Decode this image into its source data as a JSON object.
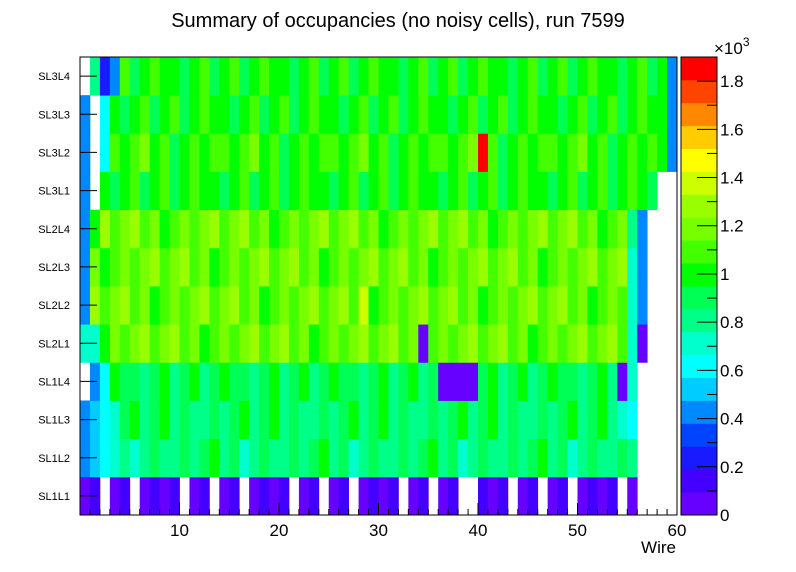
{
  "chart_data": {
    "type": "heatmap",
    "title": "Summary of occupancies (no noisy cells), run 7599",
    "xlabel": "Wire",
    "ylabel": "",
    "xlim": [
      0,
      60
    ],
    "x_ticks": [
      10,
      20,
      30,
      40,
      50,
      60
    ],
    "y_categories": [
      "SL1L1",
      "SL1L2",
      "SL1L3",
      "SL1L4",
      "SL2L1",
      "SL2L2",
      "SL2L3",
      "SL2L4",
      "SL3L1",
      "SL3L2",
      "SL3L3",
      "SL3L4"
    ],
    "z_range": [
      0,
      1900
    ],
    "z_scale_label": "×10",
    "z_scale_exponent": "3",
    "z_ticks": [
      "0",
      "0.2",
      "0.4",
      "0.6",
      "0.8",
      "1",
      "1.2",
      "1.4",
      "1.6",
      "1.8"
    ],
    "palette": [
      "#6600ff",
      "#4400ff",
      "#1a1aff",
      "#0044ff",
      "#0088ff",
      "#00ccff",
      "#00ffff",
      "#00ffcc",
      "#00ff88",
      "#00ff55",
      "#00ff00",
      "#44ff00",
      "#77ff00",
      "#99ff00",
      "#ccff00",
      "#ffff00",
      "#ffcc00",
      "#ff8800",
      "#ff4400",
      "#ff0000"
    ],
    "rows": [
      {
        "layer": "SL1L1",
        "base": 60,
        "start": 1,
        "end": 56,
        "overrides": [
          [
            40,
            0
          ]
        ]
      },
      {
        "layer": "SL1L2",
        "base": 850,
        "start": 1,
        "end": 56,
        "overrides": [
          [
            1,
            400
          ],
          [
            2,
            500
          ],
          [
            3,
            650
          ],
          [
            4,
            700
          ],
          [
            5,
            800
          ]
        ]
      },
      {
        "layer": "SL1L3",
        "base": 870,
        "start": 1,
        "end": 56,
        "overrides": [
          [
            1,
            400
          ],
          [
            2,
            500
          ],
          [
            3,
            650
          ],
          [
            4,
            700
          ],
          [
            55,
            700
          ],
          [
            56,
            650
          ]
        ]
      },
      {
        "layer": "SL1L4",
        "base": 900,
        "start": 1,
        "end": 56,
        "overrides": [
          [
            1,
            0
          ],
          [
            2,
            400
          ],
          [
            3,
            650
          ],
          [
            37,
            60
          ],
          [
            38,
            60
          ],
          [
            39,
            60
          ],
          [
            40,
            60
          ],
          [
            55,
            60
          ],
          [
            56,
            700
          ]
        ]
      },
      {
        "layer": "SL2L1",
        "base": 1150,
        "start": 1,
        "end": 57,
        "overrides": [
          [
            1,
            700
          ],
          [
            2,
            700
          ],
          [
            3,
            1000
          ],
          [
            35,
            60
          ],
          [
            56,
            700
          ],
          [
            57,
            60
          ]
        ]
      },
      {
        "layer": "SL2L2",
        "base": 1150,
        "start": 1,
        "end": 57,
        "overrides": [
          [
            1,
            400
          ],
          [
            29,
            1400
          ],
          [
            56,
            700
          ],
          [
            57,
            400
          ]
        ]
      },
      {
        "layer": "SL2L3",
        "base": 1150,
        "start": 1,
        "end": 57,
        "overrides": [
          [
            1,
            400
          ],
          [
            56,
            700
          ],
          [
            57,
            400
          ]
        ]
      },
      {
        "layer": "SL2L4",
        "base": 1150,
        "start": 1,
        "end": 57,
        "overrides": [
          [
            1,
            400
          ],
          [
            2,
            1000
          ],
          [
            56,
            800
          ],
          [
            57,
            400
          ]
        ]
      },
      {
        "layer": "SL3L1",
        "base": 1000,
        "start": 1,
        "end": 59,
        "overrides": [
          [
            1,
            400
          ],
          [
            2,
            0
          ],
          [
            58,
            900
          ],
          [
            59,
            0
          ]
        ]
      },
      {
        "layer": "SL3L2",
        "base": 1050,
        "start": 1,
        "end": 60,
        "overrides": [
          [
            1,
            400
          ],
          [
            2,
            0
          ],
          [
            3,
            600
          ],
          [
            41,
            1900
          ],
          [
            59,
            1000
          ],
          [
            60,
            400
          ]
        ]
      },
      {
        "layer": "SL3L3",
        "base": 1000,
        "start": 1,
        "end": 60,
        "overrides": [
          [
            1,
            400
          ],
          [
            2,
            0
          ],
          [
            3,
            600
          ],
          [
            60,
            400
          ]
        ]
      },
      {
        "layer": "SL3L4",
        "base": 1000,
        "start": 1,
        "end": 60,
        "overrides": [
          [
            1,
            0
          ],
          [
            2,
            800
          ],
          [
            3,
            200
          ],
          [
            4,
            400
          ],
          [
            60,
            400
          ]
        ]
      }
    ]
  }
}
